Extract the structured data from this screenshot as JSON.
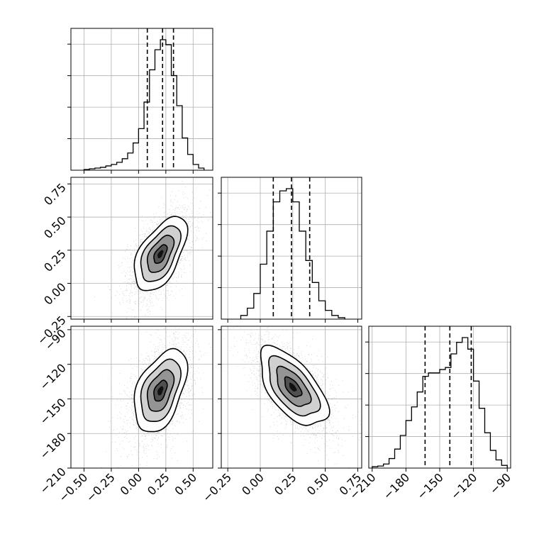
{
  "chart_data": {
    "type": "corner",
    "parameters": 3,
    "grid": true,
    "panels": [
      {
        "id": "hist-0",
        "type": "histogram",
        "column": 0,
        "row": 0,
        "xlim": [
          -0.62,
          0.68
        ],
        "bin_edges": [
          -0.5,
          -0.45,
          -0.4,
          -0.35,
          -0.3,
          -0.25,
          -0.2,
          -0.15,
          -0.1,
          -0.05,
          0.0,
          0.05,
          0.1,
          0.15,
          0.2,
          0.25,
          0.3,
          0.35,
          0.4,
          0.45,
          0.5,
          0.55,
          0.6
        ],
        "counts": [
          1,
          2,
          3,
          4,
          6,
          8,
          11,
          16,
          24,
          38,
          58,
          95,
          140,
          168,
          182,
          175,
          132,
          90,
          45,
          22,
          8,
          3
        ],
        "quantiles": [
          0.08,
          0.22,
          0.32
        ]
      },
      {
        "id": "scatter-1-0",
        "type": "density-scatter",
        "column": 0,
        "row": 1,
        "x_param": 0,
        "y_param": 1,
        "xlim": [
          -0.62,
          0.68
        ],
        "ylim": [
          -0.27,
          0.8
        ],
        "center": [
          0.2,
          0.22
        ],
        "sigma": [
          0.12,
          0.14
        ],
        "correlation": 0.55
      },
      {
        "id": "hist-1",
        "type": "histogram",
        "column": 1,
        "row": 1,
        "xlim": [
          -0.3,
          0.78
        ],
        "bin_edges": [
          -0.15,
          -0.1,
          -0.05,
          0.0,
          0.05,
          0.1,
          0.15,
          0.2,
          0.25,
          0.3,
          0.35,
          0.4,
          0.45,
          0.5,
          0.55,
          0.6,
          0.65
        ],
        "counts": [
          5,
          15,
          35,
          75,
          120,
          160,
          175,
          178,
          160,
          120,
          80,
          50,
          25,
          12,
          5,
          2
        ],
        "quantiles": [
          0.1,
          0.24,
          0.38
        ]
      },
      {
        "id": "scatter-2-0",
        "type": "density-scatter",
        "column": 0,
        "row": 2,
        "x_param": 0,
        "y_param": 2,
        "xlim": [
          -0.62,
          0.68
        ],
        "ylim": [
          -210,
          -87
        ],
        "center": [
          0.2,
          -143
        ],
        "sigma": [
          0.12,
          18
        ],
        "correlation": 0.45
      },
      {
        "id": "scatter-2-1",
        "type": "density-scatter",
        "column": 1,
        "row": 2,
        "x_param": 1,
        "y_param": 2,
        "xlim": [
          -0.3,
          0.78
        ],
        "ylim": [
          -210,
          -87
        ],
        "center": [
          0.25,
          -140
        ],
        "sigma": [
          0.13,
          17
        ],
        "correlation": -0.6
      },
      {
        "id": "hist-2",
        "type": "histogram",
        "column": 2,
        "row": 2,
        "xlim": [
          -213,
          -87
        ],
        "bin_edges": [
          -210,
          -205,
          -200,
          -195,
          -190,
          -185,
          -180,
          -175,
          -170,
          -165,
          -160,
          -155,
          -150,
          -145,
          -140,
          -135,
          -130,
          -125,
          -120,
          -115,
          -110,
          -105,
          -100,
          -95,
          -90
        ],
        "counts": [
          2,
          3,
          6,
          14,
          28,
          48,
          70,
          90,
          112,
          135,
          140,
          140,
          145,
          148,
          168,
          185,
          192,
          175,
          128,
          88,
          52,
          26,
          12,
          4
        ],
        "quantiles": [
          -163,
          -141,
          -122
        ]
      }
    ],
    "axes": {
      "col0_x": {
        "min": -0.62,
        "max": 0.68,
        "ticks": [
          -0.5,
          -0.25,
          0.0,
          0.25,
          0.5
        ],
        "tick_labels": [
          "−0.50",
          "−0.25",
          "0.00",
          "0.25",
          "0.50"
        ]
      },
      "col1_x": {
        "min": -0.3,
        "max": 0.78,
        "ticks": [
          -0.25,
          0.0,
          0.25,
          0.5,
          0.75
        ],
        "tick_labels": [
          "−0.25",
          "0.00",
          "0.25",
          "0.50",
          "0.75"
        ]
      },
      "col2_x": {
        "min": -213,
        "max": -87,
        "ticks": [
          -210,
          -180,
          -150,
          -120,
          -90
        ],
        "tick_labels": [
          "−210",
          "−180",
          "−150",
          "−120",
          "−90"
        ]
      },
      "row1_y": {
        "min": -0.27,
        "max": 0.8,
        "ticks": [
          -0.25,
          0.0,
          0.25,
          0.5,
          0.75
        ],
        "tick_labels": [
          "−0.25",
          "0.00",
          "0.25",
          "0.50",
          "0.75"
        ]
      },
      "row2_y": {
        "min": -210,
        "max": -87,
        "ticks": [
          -210,
          -180,
          -150,
          -120,
          -90
        ],
        "tick_labels": [
          "−210",
          "−180",
          "−150",
          "−120",
          "−90"
        ]
      }
    },
    "colors": {
      "line": "#000000",
      "grid": "#b0b0b0",
      "point": "#9a9a9a"
    }
  }
}
